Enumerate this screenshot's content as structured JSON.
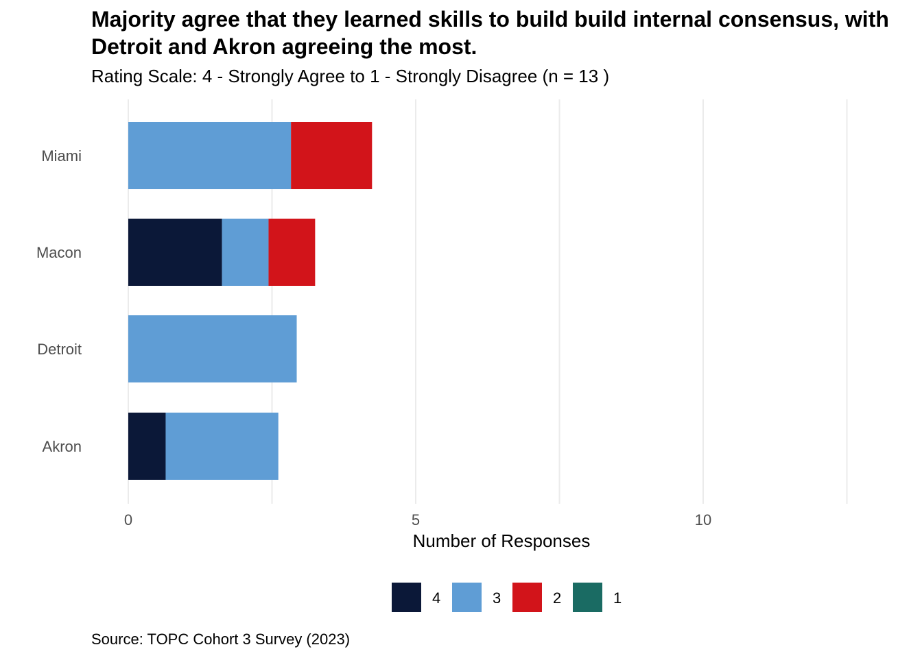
{
  "chart_data": {
    "type": "bar",
    "orientation": "horizontal",
    "stacked": true,
    "title": "Majority agree that they learned skills to build build internal consensus, with Detroit and Akron agreeing the most.",
    "subtitle": "Rating Scale: 4 - Strongly Agree to 1 - Strongly Disagree (n = 13 )",
    "caption": "Source: TOPC Cohort 3 Survey (2023)",
    "xlabel": "Number of Responses",
    "ylabel": "",
    "xlim": [
      0,
      12.5
    ],
    "x_ticks": [
      0,
      5,
      10
    ],
    "grid": true,
    "legend_position": "bottom",
    "categories": [
      "Miami",
      "Macon",
      "Detroit",
      "Akron"
    ],
    "series": [
      {
        "name": "4",
        "color": "#0b1838",
        "values": [
          0,
          1.63,
          0,
          0.65
        ]
      },
      {
        "name": "3",
        "color": "#5f9dd5",
        "values": [
          2.83,
          0.81,
          2.93,
          1.96
        ]
      },
      {
        "name": "2",
        "color": "#d2141a",
        "values": [
          1.41,
          0.81,
          0,
          0
        ]
      },
      {
        "name": "1",
        "color": "#1a6b63",
        "values": [
          0,
          0,
          0,
          0
        ]
      }
    ]
  }
}
